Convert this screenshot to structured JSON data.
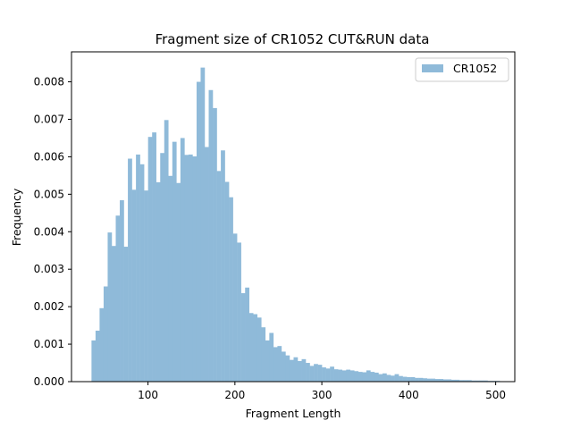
{
  "chart_data": {
    "type": "bar",
    "title": "Fragment size of CR1052 CUT&RUN data",
    "xlabel": "Fragment Length",
    "ylabel": "Frequency",
    "xlim": [
      12,
      522
    ],
    "ylim": [
      0,
      0.0088
    ],
    "xticks": [
      100,
      200,
      300,
      400,
      500
    ],
    "xtick_labels": [
      "100",
      "200",
      "300",
      "400",
      "500"
    ],
    "yticks": [
      0,
      0.001,
      0.002,
      0.003,
      0.004,
      0.005,
      0.006,
      0.007,
      0.008
    ],
    "ytick_labels": [
      "0.000",
      "0.001",
      "0.002",
      "0.003",
      "0.004",
      "0.005",
      "0.006",
      "0.007",
      "0.008"
    ],
    "grid": false,
    "legend_position": "top-right",
    "bin_start": 35,
    "bin_width": 4.65,
    "series": [
      {
        "name": "CR1052",
        "color": "#8fbad9",
        "values": [
          0.0011,
          0.00136,
          0.00196,
          0.00254,
          0.00398,
          0.00362,
          0.00443,
          0.00484,
          0.0036,
          0.00595,
          0.00512,
          0.00606,
          0.0058,
          0.0051,
          0.00653,
          0.00665,
          0.00532,
          0.0061,
          0.00698,
          0.00549,
          0.0064,
          0.0053,
          0.0065,
          0.00605,
          0.00606,
          0.00601,
          0.008,
          0.00838,
          0.00626,
          0.00778,
          0.0073,
          0.00562,
          0.00617,
          0.00533,
          0.00492,
          0.00395,
          0.00371,
          0.00236,
          0.00251,
          0.00183,
          0.0018,
          0.00171,
          0.00145,
          0.0011,
          0.0013,
          0.00092,
          0.00095,
          0.0008,
          0.0007,
          0.00058,
          0.00065,
          0.00055,
          0.0006,
          0.0005,
          0.00042,
          0.00047,
          0.00045,
          0.00038,
          0.00035,
          0.0004,
          0.00033,
          0.00032,
          0.0003,
          0.00032,
          0.0003,
          0.00028,
          0.00026,
          0.00025,
          0.0003,
          0.00026,
          0.00024,
          0.0002,
          0.00022,
          0.00018,
          0.00016,
          0.0002,
          0.00015,
          0.00013,
          0.00012,
          0.00012,
          0.0001,
          0.0001,
          9e-05,
          8e-05,
          8e-05,
          7e-05,
          7e-05,
          6e-05,
          6e-05,
          5e-05,
          5e-05,
          4e-05,
          4e-05,
          4e-05,
          3e-05,
          3e-05,
          3e-05,
          3e-05,
          2e-05,
          2e-05,
          2e-05
        ]
      }
    ]
  }
}
